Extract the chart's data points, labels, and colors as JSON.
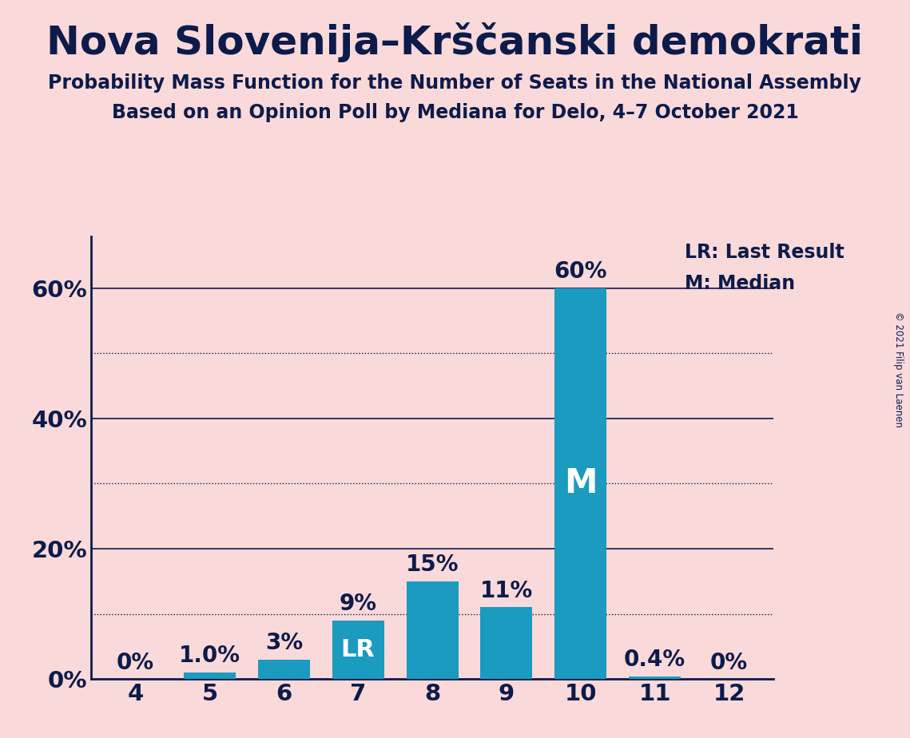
{
  "title": "Nova Slovenija–Krščanski demokrati",
  "subtitle1": "Probability Mass Function for the Number of Seats in the National Assembly",
  "subtitle2": "Based on an Opinion Poll by Mediana for Delo, 4–7 October 2021",
  "copyright": "© 2021 Filip van Laenen",
  "categories": [
    4,
    5,
    6,
    7,
    8,
    9,
    10,
    11,
    12
  ],
  "values": [
    0.0,
    1.0,
    3.0,
    9.0,
    15.0,
    11.0,
    60.0,
    0.4,
    0.0
  ],
  "bar_labels": [
    "0%",
    "1.0%",
    "3%",
    "9%",
    "15%",
    "11%",
    "60%",
    "0.4%",
    "0%"
  ],
  "bar_color": "#1a9bbf",
  "background_color": "#f9d9d9",
  "title_color": "#0d1b4b",
  "text_color": "#0d1b4b",
  "ylim": [
    0,
    68
  ],
  "yticks_solid": [
    0,
    20,
    40,
    60
  ],
  "yticks_dotted": [
    10,
    30,
    50
  ],
  "ytick_labels_solid": [
    "0%",
    "20%",
    "40%",
    "60%"
  ],
  "lr_bar": 7,
  "median_bar": 10,
  "legend_lr": "LR: Last Result",
  "legend_m": "M: Median",
  "lr_label": "LR",
  "median_label": "M"
}
